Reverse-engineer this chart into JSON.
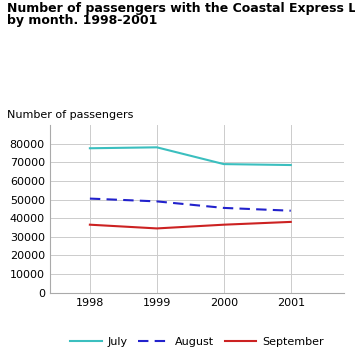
{
  "title_line1": "Number of passengers with the Coastal Express Liner,",
  "title_line2": "by month. 1998-2001",
  "ylabel": "Number of passengers",
  "years": [
    1998,
    1999,
    2000,
    2001
  ],
  "july": [
    77500,
    78000,
    69000,
    68500
  ],
  "august": [
    50500,
    49000,
    45500,
    44000
  ],
  "september": [
    36500,
    34500,
    36500,
    38000
  ],
  "july_color": "#3bbfbf",
  "august_color": "#2222cc",
  "september_color": "#cc2222",
  "title_bar_color": "#5bc8c8",
  "ylim": [
    0,
    90000
  ],
  "yticks": [
    0,
    10000,
    20000,
    30000,
    40000,
    50000,
    60000,
    70000,
    80000
  ],
  "grid_color": "#cccccc",
  "bg_color": "#ffffff",
  "spine_color": "#aaaaaa"
}
